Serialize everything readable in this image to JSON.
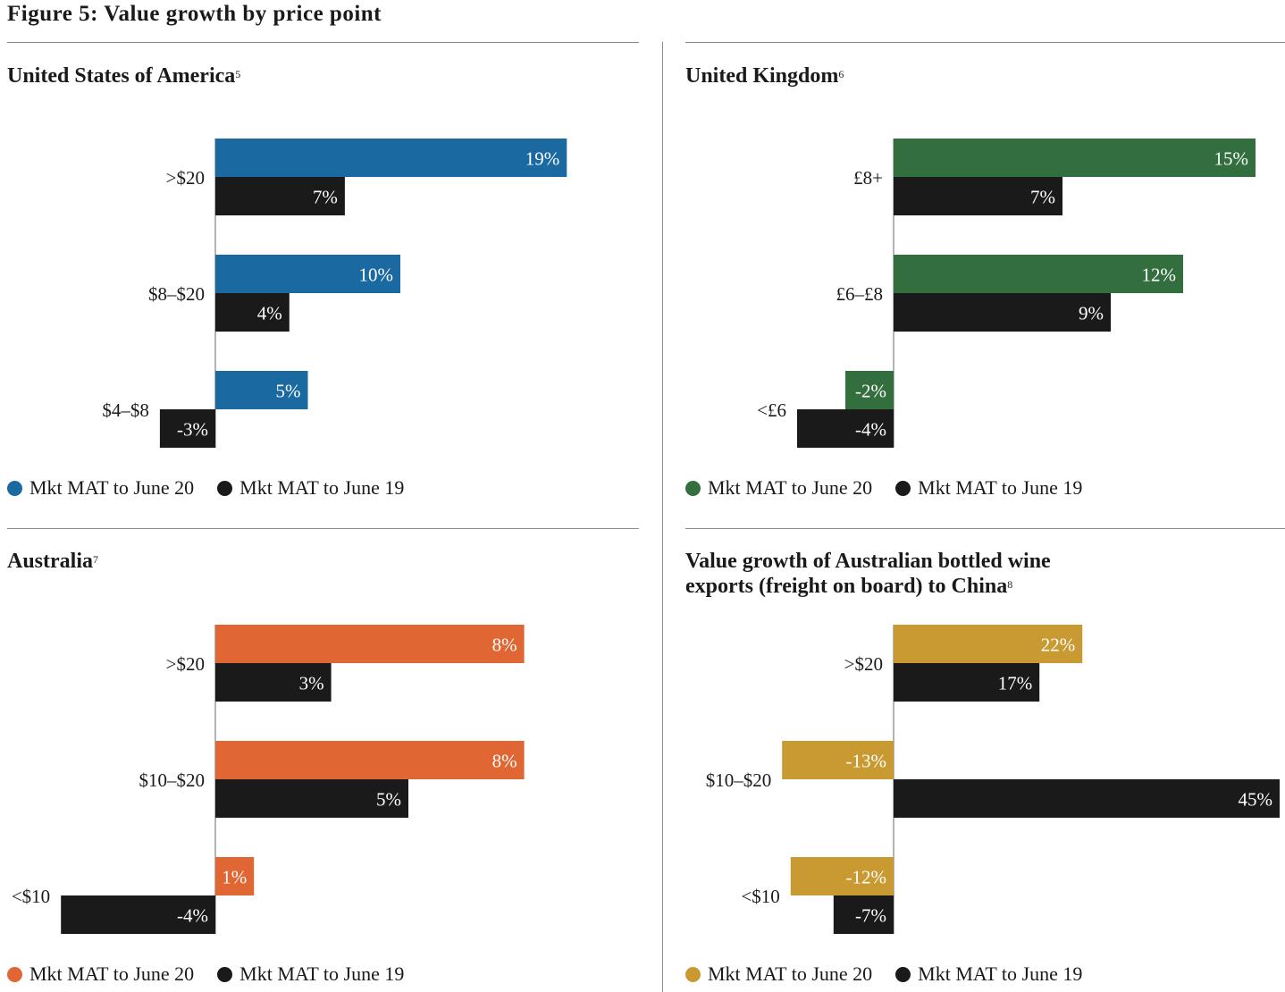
{
  "figure_title": "Figure 5: Value growth by price point",
  "chart_data": [
    {
      "type": "bar",
      "orientation": "horizontal",
      "title": "United States of America",
      "footnote": "5",
      "categories": [
        ">$20",
        "$8–$20",
        "$4–$8"
      ],
      "series": [
        {
          "name": "Mkt MAT to June 20",
          "values": [
            19,
            10,
            5
          ],
          "labels": [
            "19%",
            "10%",
            "5%"
          ],
          "color": "#1a6aa1"
        },
        {
          "name": "Mkt MAT to June 19",
          "values": [
            7,
            4,
            -3
          ],
          "labels": [
            "7%",
            "4%",
            "-3%"
          ],
          "color": "#1a1a1a"
        }
      ],
      "unit": "%",
      "xlim": [
        -3,
        19
      ]
    },
    {
      "type": "bar",
      "orientation": "horizontal",
      "title": "United Kingdom",
      "footnote": "6",
      "categories": [
        "£8+",
        "£6–£8",
        "<£6"
      ],
      "series": [
        {
          "name": "Mkt MAT to June 20",
          "values": [
            15,
            12,
            -2
          ],
          "labels": [
            "15%",
            "12%",
            "-2%"
          ],
          "color": "#336e3e"
        },
        {
          "name": "Mkt MAT to June 19",
          "values": [
            7,
            9,
            -4
          ],
          "labels": [
            "7%",
            "9%",
            "-4%"
          ],
          "color": "#1a1a1a"
        }
      ],
      "unit": "%",
      "xlim": [
        -4,
        15
      ]
    },
    {
      "type": "bar",
      "orientation": "horizontal",
      "title": "Australia",
      "footnote": "7",
      "categories": [
        ">$20",
        "$10–$20",
        "<$10"
      ],
      "series": [
        {
          "name": "Mkt MAT to June 20",
          "values": [
            8,
            8,
            1
          ],
          "labels": [
            "8%",
            "8%",
            "1%"
          ],
          "color": "#e06633"
        },
        {
          "name": "Mkt MAT to June 19",
          "values": [
            3,
            5,
            -4
          ],
          "labels": [
            "3%",
            "5%",
            "-4%"
          ],
          "color": "#1a1a1a"
        }
      ],
      "unit": "%",
      "xlim": [
        -4,
        8
      ]
    },
    {
      "type": "bar",
      "orientation": "horizontal",
      "title": "Value growth of Australian bottled wine exports (freight on board) to China",
      "title_lines": [
        "Value growth of Australian bottled wine",
        "exports (freight on board) to China"
      ],
      "footnote": "8",
      "categories": [
        ">$20",
        "$10–$20",
        "<$10"
      ],
      "series": [
        {
          "name": "Mkt MAT to June 20",
          "values": [
            22,
            -13,
            -12
          ],
          "labels": [
            "22%",
            "-13%",
            "-12%"
          ],
          "color": "#c99a31"
        },
        {
          "name": "Mkt MAT to June 19",
          "values": [
            17,
            45,
            -7
          ],
          "labels": [
            "17%",
            "45%",
            "-7%"
          ],
          "color": "#1a1a1a"
        }
      ],
      "unit": "%",
      "xlim": [
        -13,
        45
      ]
    }
  ]
}
